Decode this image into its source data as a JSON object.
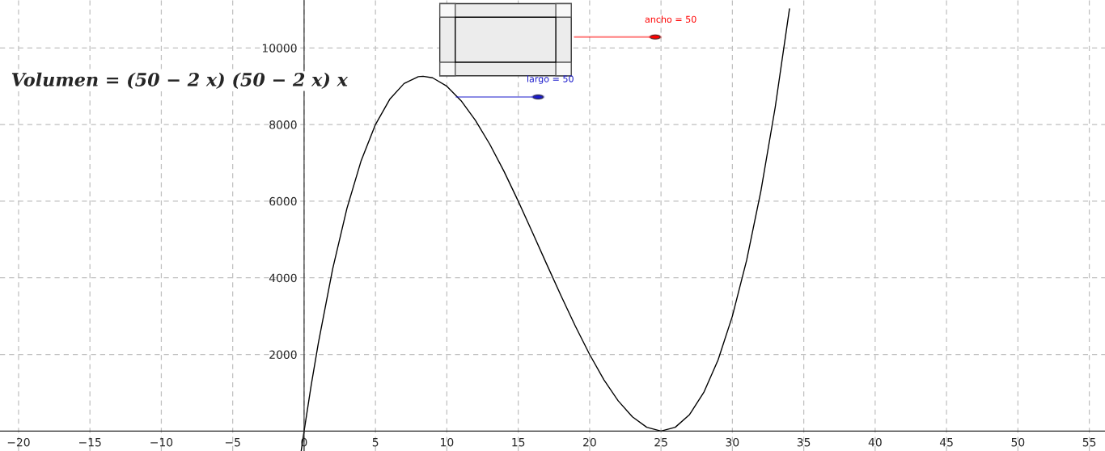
{
  "chart_data": {
    "type": "line",
    "title": "Volumen = (50 − 2 x) (50 − 2 x) x",
    "annotations": [
      "ancho = 50",
      "largo = 50"
    ],
    "series": [
      {
        "color": "#000000",
        "x": [
          -0.2,
          0,
          0.5,
          1,
          2,
          3,
          4,
          5,
          6,
          7,
          8,
          8.33,
          9,
          10,
          11,
          12,
          13,
          14,
          15,
          16,
          17,
          18,
          19,
          20,
          21,
          22,
          23,
          24,
          25,
          26,
          27,
          28,
          29,
          30,
          31,
          32,
          33,
          34
        ],
        "values": [
          -510,
          0,
          1200,
          2300,
          4230,
          5810,
          7060,
          8000,
          8660,
          9070,
          9250,
          9260,
          9220,
          9000,
          8620,
          8110,
          7490,
          6780,
          6000,
          5180,
          4350,
          3530,
          2740,
          2000,
          1340,
          790,
          370,
          100,
          0,
          100,
          430,
          1010,
          1860,
          3000,
          4460,
          6270,
          8450,
          11020
        ]
      }
    ],
    "xlim": [
      -21.3,
      56.1
    ],
    "ylim": [
      -520,
      11250
    ],
    "xticks": [
      {
        "value": -20,
        "label": "−20"
      },
      {
        "value": -15,
        "label": "−15"
      },
      {
        "value": -10,
        "label": "−10"
      },
      {
        "value": -5,
        "label": "−5"
      },
      0,
      5,
      10,
      15,
      20,
      25,
      30,
      35,
      40,
      45,
      50,
      55
    ],
    "yticks": [
      2000,
      4000,
      6000,
      8000,
      10000
    ],
    "grid": true,
    "line_style": "solid",
    "marker": "none"
  }
}
